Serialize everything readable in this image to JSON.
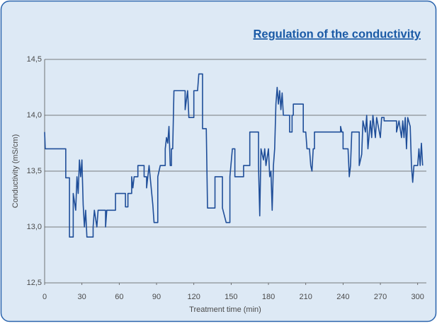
{
  "chart_data": {
    "type": "line",
    "title": "Regulation of the conductivity",
    "x_label": "Treatment time (min)",
    "y_label": "Conductivity (mS/cm)",
    "xlim": [
      0,
      307
    ],
    "ylim": [
      12.5,
      14.5
    ],
    "xticks": [
      0,
      30,
      60,
      90,
      120,
      150,
      180,
      210,
      240,
      270,
      300
    ],
    "yticks": [
      {
        "value": 12.5,
        "label": "12,5"
      },
      {
        "value": 13.0,
        "label": "13,0"
      },
      {
        "value": 13.5,
        "label": "13,5"
      },
      {
        "value": 14.0,
        "label": "14,0"
      },
      {
        "value": 14.5,
        "label": "14,5"
      }
    ],
    "grid": true,
    "color": "#1f4e99",
    "x": [
      0,
      0.5,
      17,
      17,
      20,
      20,
      23,
      23,
      25,
      26,
      27,
      28,
      29,
      30,
      31,
      32,
      33,
      34,
      39,
      39,
      40,
      42,
      43,
      49,
      49,
      50,
      57,
      57,
      65,
      65,
      67,
      67,
      70,
      70,
      71,
      72,
      75,
      75,
      80,
      80,
      82,
      82,
      84,
      87,
      88,
      91,
      91,
      93,
      97,
      97,
      98,
      99,
      100,
      101,
      102,
      102,
      103,
      104,
      113,
      113,
      115,
      116,
      120,
      120,
      123,
      124,
      127,
      127,
      130,
      131,
      137,
      137,
      143,
      143,
      146,
      149,
      149,
      151,
      153,
      153,
      160,
      160,
      165,
      165,
      172,
      172,
      173,
      174,
      176,
      177,
      178,
      180,
      181,
      182,
      183,
      184,
      185,
      186,
      187,
      188,
      189,
      190,
      191,
      192,
      193,
      197,
      197,
      199,
      199,
      200,
      200,
      208,
      208,
      210,
      211,
      213,
      214,
      215,
      216,
      217,
      217,
      238,
      238,
      239,
      240,
      240,
      244,
      245,
      246,
      247,
      253,
      253,
      255,
      256,
      258,
      259,
      260,
      262,
      263,
      264,
      266,
      267,
      270,
      271,
      273,
      273,
      283,
      283,
      285,
      287,
      288,
      289,
      290,
      291,
      292,
      294,
      295,
      296,
      297,
      300,
      301,
      302,
      303,
      304
    ],
    "values": [
      13.85,
      13.7,
      13.7,
      13.44,
      13.44,
      12.91,
      12.91,
      13.3,
      13.15,
      13.45,
      13.3,
      13.6,
      13.45,
      13.6,
      13.2,
      13.0,
      13.15,
      12.91,
      12.91,
      13.0,
      13.15,
      13.0,
      13.15,
      13.15,
      13.0,
      13.15,
      13.15,
      13.3,
      13.3,
      13.18,
      13.18,
      13.3,
      13.3,
      13.45,
      13.35,
      13.45,
      13.45,
      13.55,
      13.55,
      13.45,
      13.45,
      13.35,
      13.55,
      13.2,
      13.04,
      13.04,
      13.45,
      13.55,
      13.55,
      13.7,
      13.8,
      13.75,
      13.9,
      13.55,
      13.55,
      13.7,
      13.7,
      14.22,
      14.22,
      14.05,
      14.22,
      13.98,
      13.98,
      14.22,
      14.22,
      14.37,
      14.37,
      13.88,
      13.88,
      13.17,
      13.17,
      13.45,
      13.45,
      13.17,
      13.04,
      13.04,
      13.45,
      13.7,
      13.7,
      13.45,
      13.45,
      13.55,
      13.55,
      13.85,
      13.85,
      13.55,
      13.1,
      13.7,
      13.6,
      13.7,
      13.55,
      13.7,
      13.45,
      13.5,
      13.15,
      13.55,
      13.7,
      14.1,
      14.25,
      14.1,
      14.22,
      14.05,
      14.2,
      14.0,
      14.0,
      14.0,
      13.85,
      13.85,
      14.0,
      14.0,
      14.1,
      14.1,
      13.85,
      13.85,
      13.7,
      13.7,
      13.55,
      13.5,
      13.7,
      13.7,
      13.85,
      13.85,
      13.9,
      13.85,
      13.85,
      13.7,
      13.7,
      13.45,
      13.55,
      13.85,
      13.85,
      13.55,
      13.65,
      13.95,
      13.85,
      14.0,
      13.7,
      13.95,
      13.8,
      14.0,
      13.8,
      13.98,
      13.8,
      13.98,
      13.98,
      13.95,
      13.95,
      13.85,
      13.95,
      13.8,
      13.95,
      13.8,
      13.98,
      13.7,
      13.98,
      13.9,
      13.55,
      13.4,
      13.55,
      13.55,
      13.7,
      13.55,
      13.75,
      13.55
    ]
  }
}
